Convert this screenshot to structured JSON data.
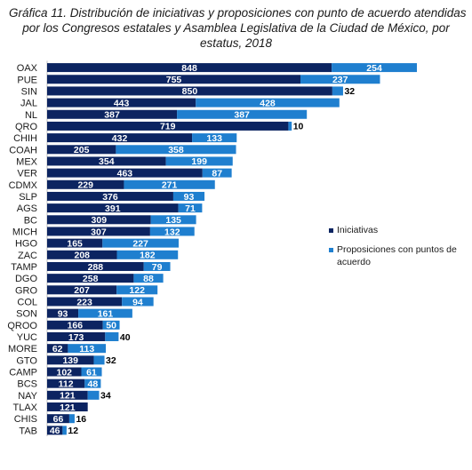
{
  "chart_data": {
    "type": "bar",
    "orientation": "horizontal",
    "stacked": true,
    "title_lines": [
      "Gráfica 11. Distribución de iniciativas y proposiciones con punto de acuerdo atendidas",
      "por los Congresos estatales y Asamblea Legislativa de la Ciudad de México, por",
      "estatus, 2018"
    ],
    "categories": [
      "OAX",
      "PUE",
      "SIN",
      "JAL",
      "NL",
      "QRO",
      "CHIH",
      "COAH",
      "MEX",
      "VER",
      "CDMX",
      "SLP",
      "AGS",
      "BC",
      "MICH",
      "HGO",
      "ZAC",
      "TAMP",
      "DGO",
      "GRO",
      "COL",
      "SON",
      "QROO",
      "YUC",
      "MORE",
      "GTO",
      "CAMP",
      "BCS",
      "NAY",
      "TLAX",
      "CHIS",
      "TAB"
    ],
    "series": [
      {
        "name": "Iniciativas",
        "color": "#0c2461",
        "values": [
          848,
          755,
          850,
          443,
          387,
          719,
          432,
          205,
          354,
          463,
          229,
          376,
          391,
          309,
          307,
          165,
          208,
          288,
          258,
          207,
          223,
          93,
          166,
          173,
          62,
          139,
          102,
          112,
          121,
          121,
          66,
          46
        ]
      },
      {
        "name": "Proposiciones con puntos de acuerdo",
        "color": "#1f7fcf",
        "values": [
          254,
          237,
          32,
          428,
          387,
          10,
          133,
          358,
          199,
          87,
          271,
          93,
          71,
          135,
          132,
          227,
          182,
          79,
          88,
          122,
          94,
          161,
          50,
          40,
          113,
          32,
          61,
          48,
          34,
          null,
          16,
          12
        ]
      }
    ],
    "grid": false,
    "legend_position": "right"
  }
}
